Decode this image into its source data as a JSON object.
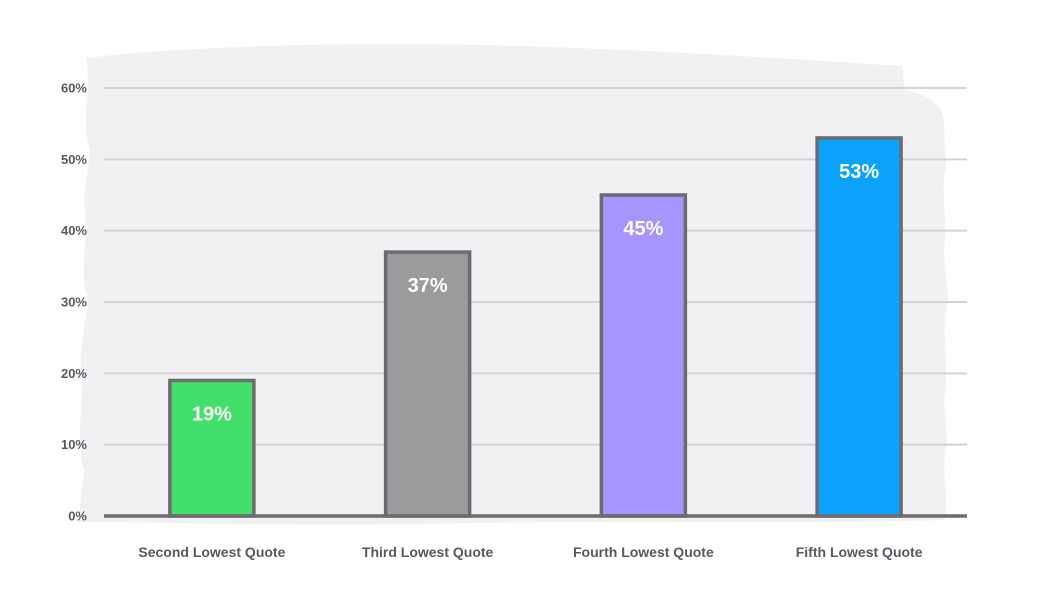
{
  "chart_data": {
    "type": "bar",
    "title": "",
    "xlabel": "",
    "ylabel": "",
    "categories": [
      "Second Lowest Quote",
      "Third Lowest Quote",
      "Fourth Lowest Quote",
      "Fifth Lowest Quote"
    ],
    "values": [
      19,
      37,
      45,
      53
    ],
    "data_labels": [
      "19%",
      "37%",
      "45%",
      "53%"
    ],
    "ylim": [
      0,
      60
    ],
    "y_ticks": [
      0,
      10,
      20,
      30,
      40,
      50,
      60
    ],
    "y_tick_labels": [
      "0%",
      "10%",
      "20%",
      "30%",
      "40%",
      "50%",
      "60%"
    ],
    "grid": true,
    "legend": "none",
    "colors": {
      "bars": [
        "#42e06a",
        "#9a9b9d",
        "#a795fe",
        "#0aa2fb"
      ],
      "bar_outline": "#6b6b70",
      "gridline": "#d3d3d6",
      "axis": "#6b6b70",
      "background_brush": "#f1f1f3",
      "label_text": "#555a60",
      "data_label_text": "#ffffff"
    }
  }
}
